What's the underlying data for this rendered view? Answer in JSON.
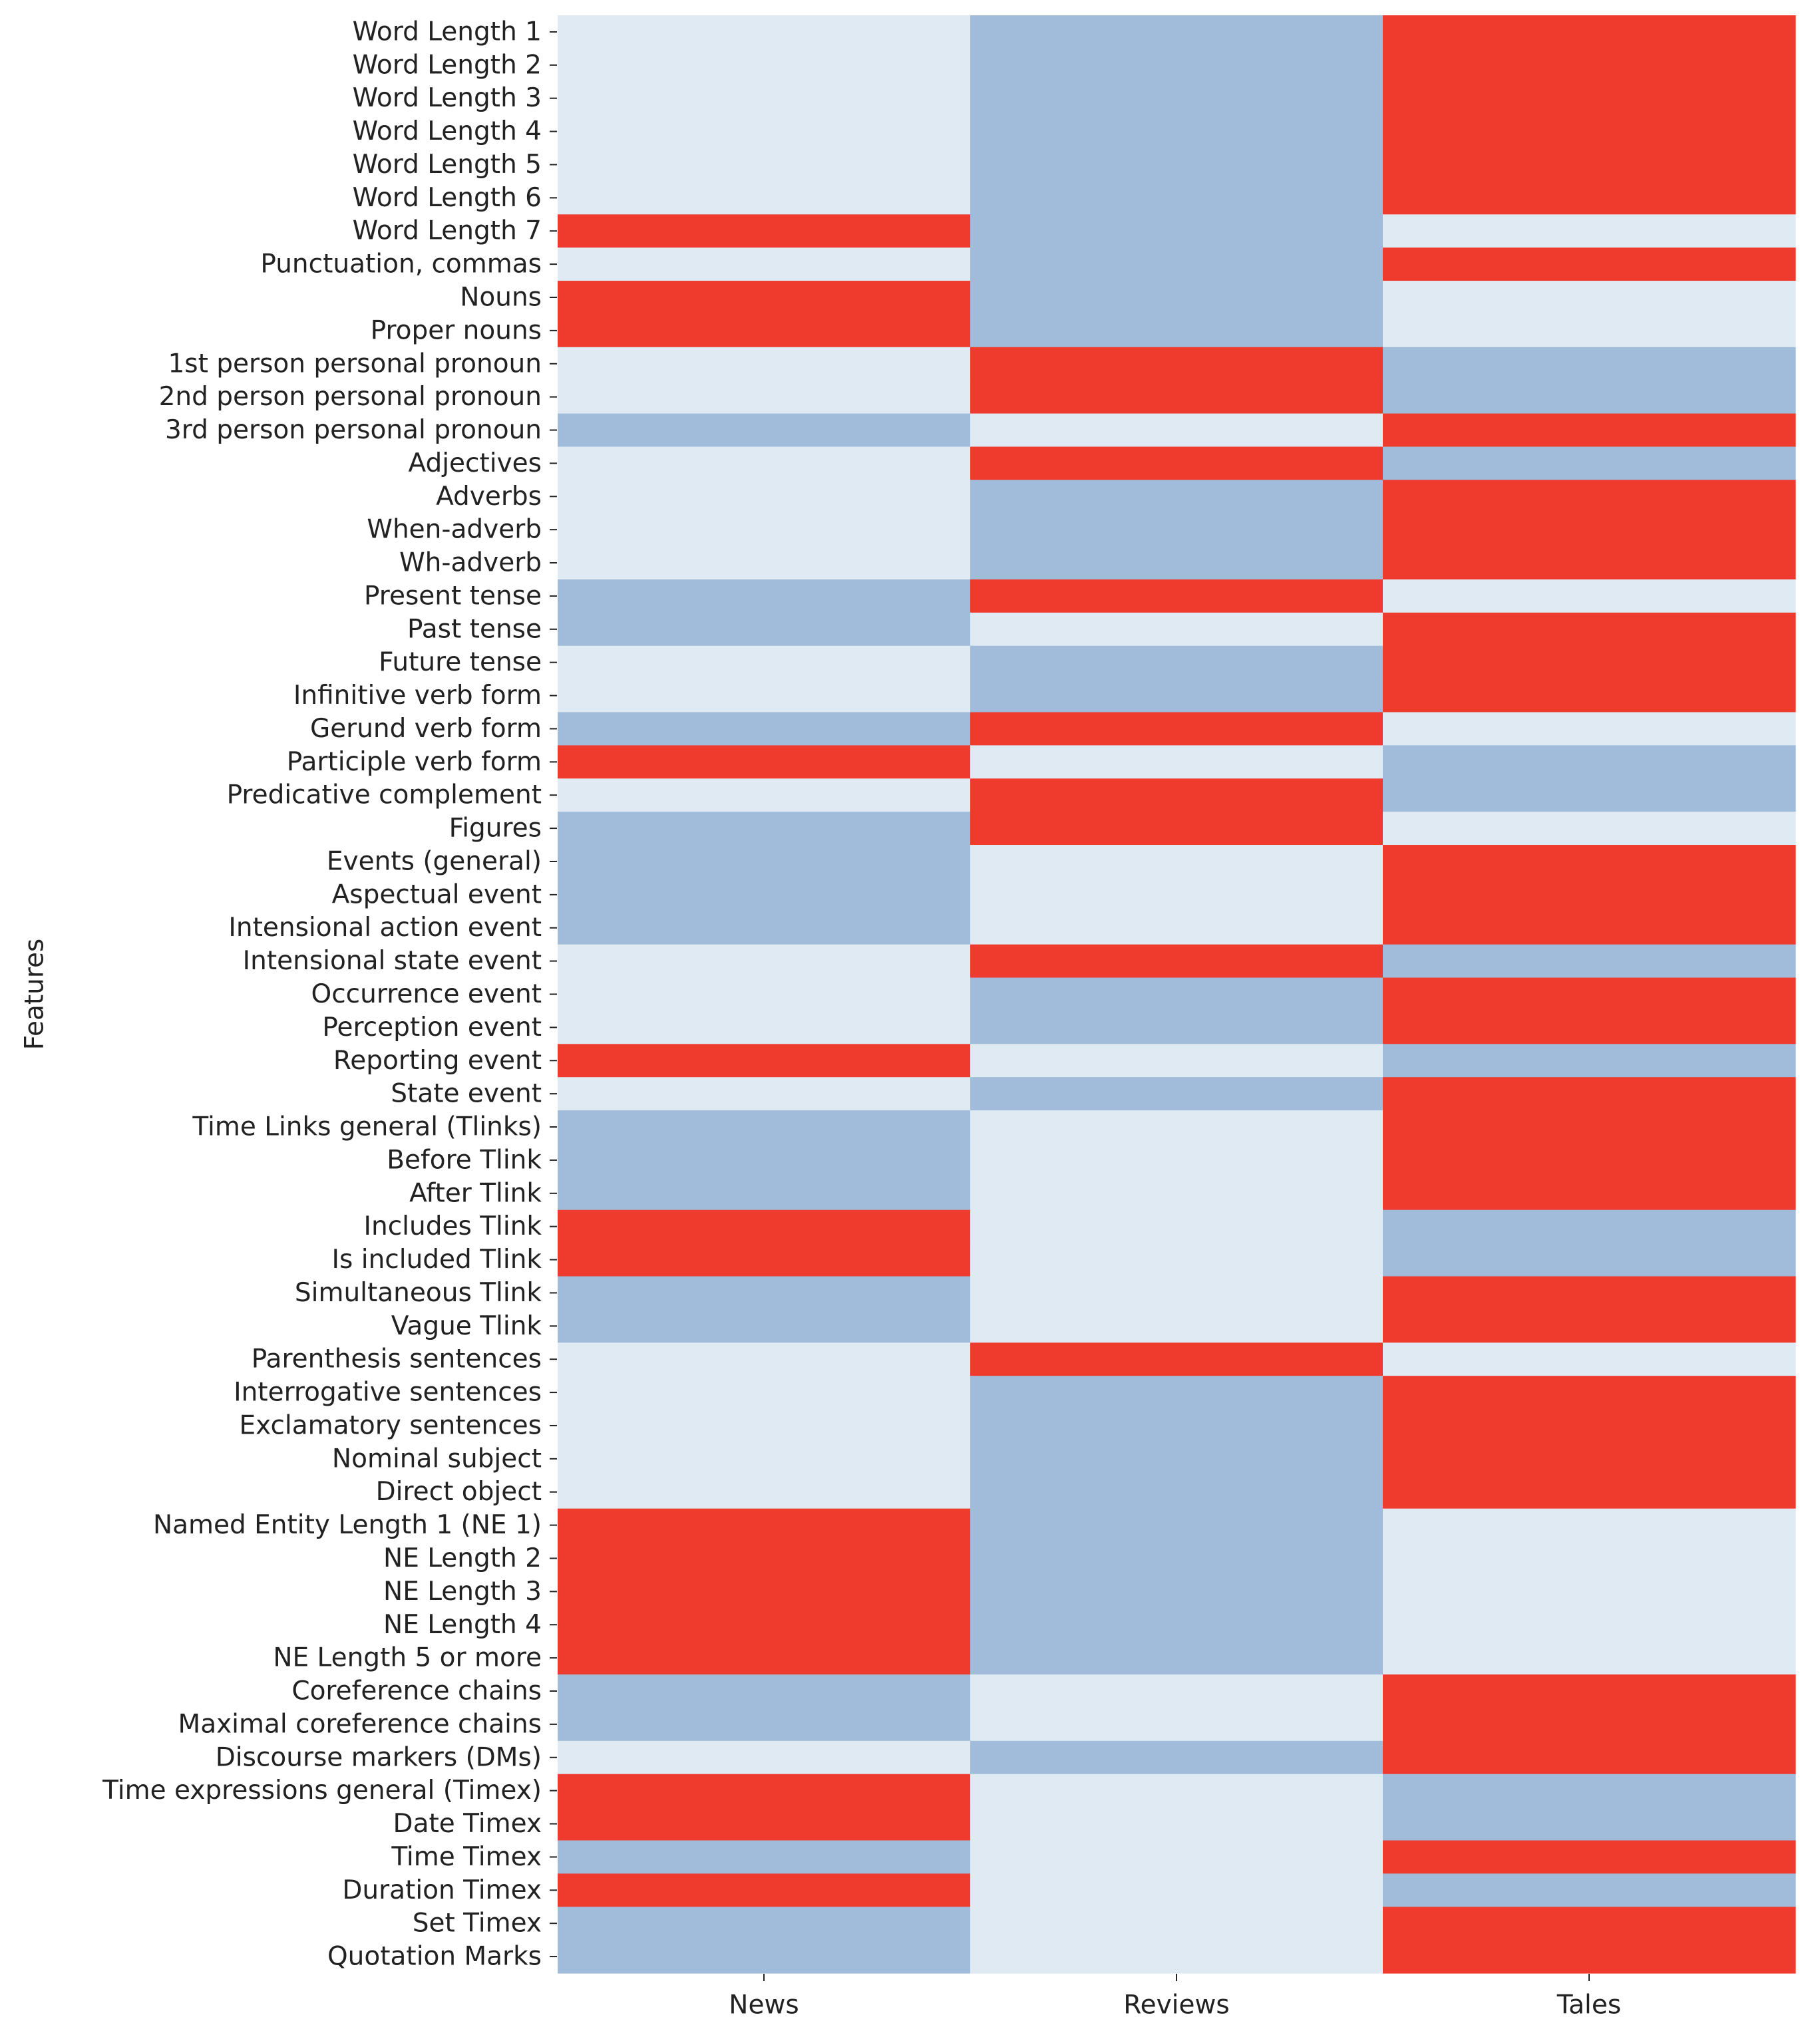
{
  "chart_data": {
    "type": "heatmap",
    "title": "",
    "xlabel": "",
    "ylabel": "Features",
    "x_categories": [
      "News",
      "Reviews",
      "Tales"
    ],
    "y_categories": [
      "Word Length 1",
      "Word Length 2",
      "Word Length 3",
      "Word Length 4",
      "Word Length 5",
      "Word Length 6",
      "Word Length 7",
      "Punctuation, commas",
      "Nouns",
      "Proper nouns",
      "1st person personal pronoun",
      "2nd person personal pronoun",
      "3rd person personal pronoun",
      "Adjectives",
      "Adverbs",
      "When-adverb",
      "Wh-adverb",
      "Present tense",
      "Past tense",
      "Future tense",
      "Infinitive verb form",
      "Gerund verb form",
      "Participle verb form",
      "Predicative complement",
      "Figures",
      "Events (general)",
      "Aspectual event",
      "Intensional action event",
      "Intensional state event",
      "Occurrence event",
      "Perception event",
      "Reporting event",
      "State event",
      "Time Links  general (Tlinks)",
      "Before Tlink",
      "After Tlink",
      "Includes Tlink",
      "Is included Tlink",
      "Simultaneous Tlink",
      "Vague Tlink",
      "Parenthesis sentences",
      "Interrogative sentences",
      "Exclamatory sentences",
      "Nominal subject",
      "Direct object",
      "Named Entity Length 1 (NE 1)",
      "NE Length 2",
      "NE Length 3",
      "NE Length 4",
      "NE Length 5 or more",
      "Coreference chains",
      "Maximal coreference chains",
      "Discourse markers (DMs)",
      "Time expressions general (Timex) ",
      "Date Timex",
      "Time Timex",
      "Duration Timex",
      "Set Timex",
      "Quotation Marks"
    ],
    "values": [
      [
        0,
        1,
        2
      ],
      [
        0,
        1,
        2
      ],
      [
        0,
        1,
        2
      ],
      [
        0,
        1,
        2
      ],
      [
        0,
        1,
        2
      ],
      [
        0,
        1,
        2
      ],
      [
        2,
        1,
        0
      ],
      [
        0,
        1,
        2
      ],
      [
        2,
        1,
        0
      ],
      [
        2,
        1,
        0
      ],
      [
        0,
        2,
        1
      ],
      [
        0,
        2,
        1
      ],
      [
        1,
        0,
        2
      ],
      [
        0,
        2,
        1
      ],
      [
        0,
        1,
        2
      ],
      [
        0,
        1,
        2
      ],
      [
        0,
        1,
        2
      ],
      [
        1,
        2,
        0
      ],
      [
        1,
        0,
        2
      ],
      [
        0,
        1,
        2
      ],
      [
        0,
        1,
        2
      ],
      [
        1,
        2,
        0
      ],
      [
        2,
        0,
        1
      ],
      [
        0,
        2,
        1
      ],
      [
        1,
        2,
        0
      ],
      [
        1,
        0,
        2
      ],
      [
        1,
        0,
        2
      ],
      [
        1,
        0,
        2
      ],
      [
        0,
        2,
        1
      ],
      [
        0,
        1,
        2
      ],
      [
        0,
        1,
        2
      ],
      [
        2,
        0,
        1
      ],
      [
        0,
        1,
        2
      ],
      [
        1,
        0,
        2
      ],
      [
        1,
        0,
        2
      ],
      [
        1,
        0,
        2
      ],
      [
        2,
        0,
        1
      ],
      [
        2,
        0,
        1
      ],
      [
        1,
        0,
        2
      ],
      [
        1,
        0,
        2
      ],
      [
        0,
        2,
        0
      ],
      [
        0,
        1,
        2
      ],
      [
        0,
        1,
        2
      ],
      [
        0,
        1,
        2
      ],
      [
        0,
        1,
        2
      ],
      [
        2,
        1,
        0
      ],
      [
        2,
        1,
        0
      ],
      [
        2,
        1,
        0
      ],
      [
        2,
        1,
        0
      ],
      [
        2,
        1,
        0
      ],
      [
        1,
        0,
        2
      ],
      [
        1,
        0,
        2
      ],
      [
        0,
        1,
        2
      ],
      [
        2,
        0,
        1
      ],
      [
        2,
        0,
        1
      ],
      [
        1,
        0,
        2
      ],
      [
        2,
        0,
        1
      ],
      [
        1,
        0,
        2
      ],
      [
        1,
        0,
        2
      ]
    ],
    "color_scale": {
      "0": "#dfeaf3",
      "1": "#a0bcda",
      "2": "#ee3b2e"
    },
    "colorbar": false,
    "grid": false
  }
}
